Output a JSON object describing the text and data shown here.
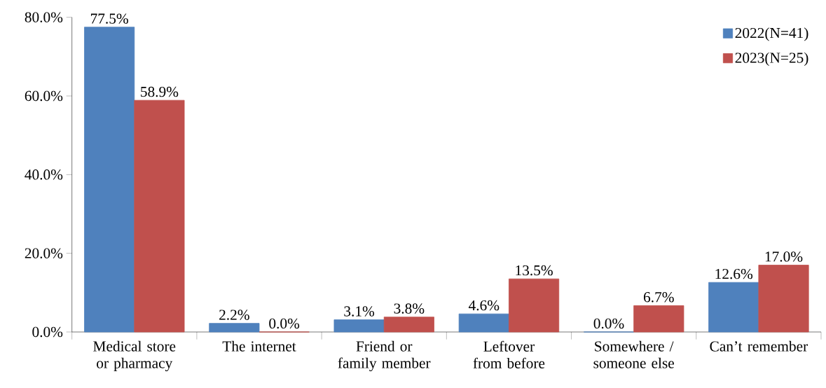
{
  "chart_data": {
    "type": "bar",
    "categories": [
      "Medical store or pharmacy",
      "The internet",
      "Friend or family member",
      "Leftover from before",
      "Somewhere / someone else",
      "Can’t remember"
    ],
    "series": [
      {
        "name": "2022(N=41)",
        "color": "#4f81bd",
        "values": [
          77.5,
          2.2,
          3.1,
          4.6,
          0.0,
          12.6
        ],
        "value_labels": [
          "77.5%",
          "2.2%",
          "3.1%",
          "4.6%",
          "0.0%",
          "12.6%"
        ]
      },
      {
        "name": "2023(N=25)",
        "color": "#c0504d",
        "values": [
          58.9,
          0.0,
          3.8,
          13.5,
          6.7,
          17.0
        ],
        "value_labels": [
          "58.9%",
          "0.0%",
          "3.8%",
          "13.5%",
          "6.7%",
          "17.0%"
        ]
      }
    ],
    "ylim": [
      0,
      80
    ],
    "yticks": [
      {
        "value": 0,
        "label": "0.0%"
      },
      {
        "value": 20,
        "label": "20.0%"
      },
      {
        "value": 40,
        "label": "40.0%"
      },
      {
        "value": 60,
        "label": "60.0%"
      },
      {
        "value": 80,
        "label": "80.0%"
      }
    ],
    "legend": "top right"
  }
}
